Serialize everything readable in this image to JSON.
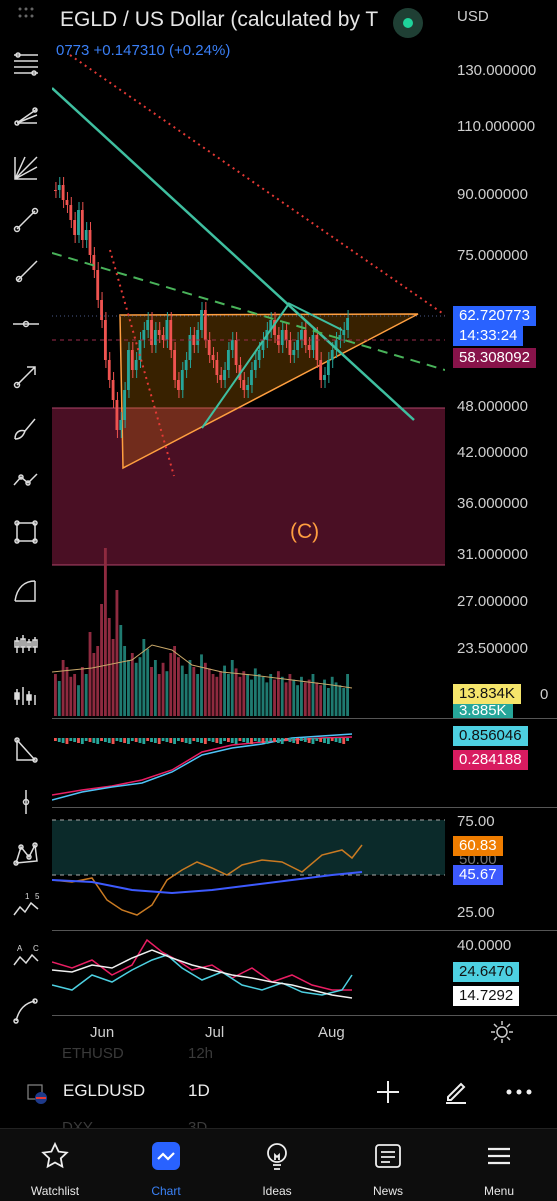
{
  "header": {
    "title": "EGLD / US Dollar (calculated by T",
    "change": "0773  +0.147310 (+0.24%)",
    "currency": "USD"
  },
  "price_scale": {
    "ticks": [
      "130.000000",
      "110.000000",
      "90.000000",
      "75.000000",
      "48.000000",
      "42.000000",
      "36.000000",
      "31.000000",
      "27.000000",
      "23.500000"
    ],
    "tick_partial": "0",
    "last_price": "62.720773",
    "countdown": "14:33:24",
    "level_tag": "58.308092",
    "volume_tag": "13.834K",
    "volume_ma_tag": "3.885K"
  },
  "macd": {
    "value1": "0.856046",
    "value2": "0.284188"
  },
  "rsi": {
    "upper": "75.00",
    "value": "60.83",
    "hidden": "50.00",
    "ma": "45.67",
    "lower": "25.00"
  },
  "adx": {
    "upper": "40.0000",
    "value1": "24.6470",
    "value2": "14.7292"
  },
  "x_axis": [
    "Jun",
    "Jul",
    "Aug"
  ],
  "annotation": "(C)",
  "symbol_bar": {
    "symbol": "EGLDUSD",
    "interval": "1D",
    "ghost_symbol_above": "ETHUSD",
    "ghost_interval_above": "12h",
    "ghost_symbol_below": "DXY",
    "ghost_interval_below": "3D"
  },
  "nav": [
    {
      "label": "Watchlist",
      "icon": "star-icon"
    },
    {
      "label": "Chart",
      "icon": "chart-icon"
    },
    {
      "label": "Ideas",
      "icon": "lightbulb-icon"
    },
    {
      "label": "News",
      "icon": "news-icon"
    },
    {
      "label": "Menu",
      "icon": "menu-icon"
    }
  ],
  "colors": {
    "up": "#26a69a",
    "down": "#ef5350",
    "accent": "#2962ff",
    "triangle": "#ff9800",
    "zone": "#880e4f"
  }
}
